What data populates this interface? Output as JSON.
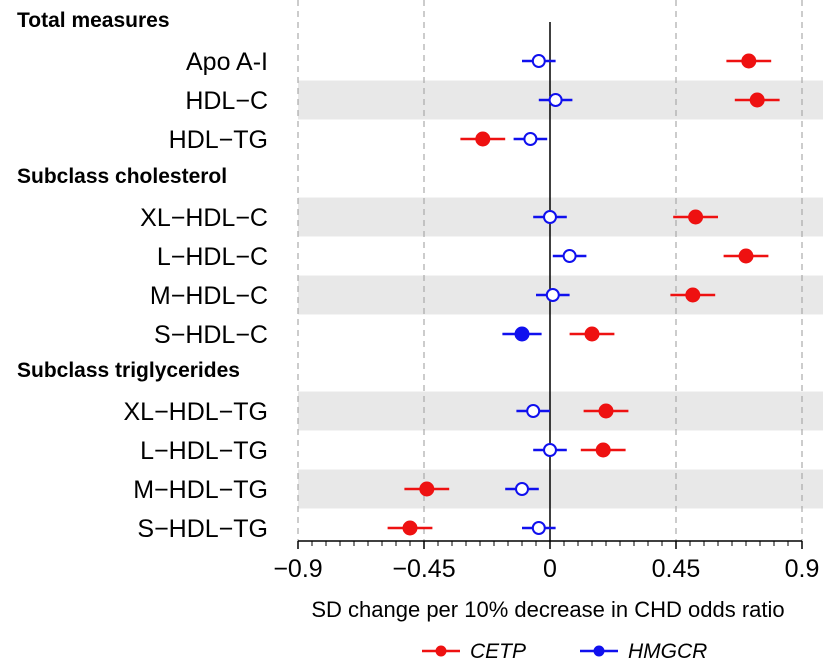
{
  "chart_data": {
    "type": "scatter",
    "subtype": "forest-plot",
    "xlabel": "SD change per 10% decrease in CHD odds ratio",
    "xlim": [
      -0.9,
      0.9
    ],
    "xticks": [
      -0.9,
      -0.45,
      0,
      0.45,
      0.9
    ],
    "xtick_labels": [
      "−0.9",
      "−0.45",
      "0",
      "0.45",
      "0.9"
    ],
    "grid": "dashed vertical at major ticks",
    "reference_line": 0,
    "legend_position": "bottom",
    "groups": [
      {
        "label": "Total measures",
        "rows": [
          "Apo A-I",
          "HDL−C",
          "HDL−TG"
        ]
      },
      {
        "label": "Subclass cholesterol",
        "rows": [
          "XL−HDL−C",
          "L−HDL−C",
          "M−HDL−C",
          "S−HDL−C"
        ]
      },
      {
        "label": "Subclass triglycerides",
        "rows": [
          "XL−HDL−TG",
          "L−HDL−TG",
          "M−HDL−TG",
          "S−HDL−TG"
        ]
      }
    ],
    "shaded_rows": [
      "HDL−C",
      "XL−HDL−C",
      "M−HDL−C",
      "XL−HDL−TG",
      "M−HDL−TG"
    ],
    "series": [
      {
        "name": "CETP",
        "color": "#ee1111",
        "points": [
          {
            "row": "Apo A-I",
            "est": 0.71,
            "lo": 0.63,
            "hi": 0.79,
            "filled": true
          },
          {
            "row": "HDL−C",
            "est": 0.74,
            "lo": 0.66,
            "hi": 0.82,
            "filled": true
          },
          {
            "row": "HDL−TG",
            "est": -0.24,
            "lo": -0.32,
            "hi": -0.16,
            "filled": true
          },
          {
            "row": "XL−HDL−C",
            "est": 0.52,
            "lo": 0.44,
            "hi": 0.6,
            "filled": true
          },
          {
            "row": "L−HDL−C",
            "est": 0.7,
            "lo": 0.62,
            "hi": 0.78,
            "filled": true
          },
          {
            "row": "M−HDL−C",
            "est": 0.51,
            "lo": 0.43,
            "hi": 0.59,
            "filled": true
          },
          {
            "row": "S−HDL−C",
            "est": 0.15,
            "lo": 0.07,
            "hi": 0.23,
            "filled": true
          },
          {
            "row": "XL−HDL−TG",
            "est": 0.2,
            "lo": 0.12,
            "hi": 0.28,
            "filled": true
          },
          {
            "row": "L−HDL−TG",
            "est": 0.19,
            "lo": 0.11,
            "hi": 0.27,
            "filled": true
          },
          {
            "row": "M−HDL−TG",
            "est": -0.44,
            "lo": -0.52,
            "hi": -0.36,
            "filled": true
          },
          {
            "row": "S−HDL−TG",
            "est": -0.5,
            "lo": -0.58,
            "hi": -0.42,
            "filled": true
          }
        ]
      },
      {
        "name": "HMGCR",
        "color": "#1010ee",
        "points": [
          {
            "row": "Apo A-I",
            "est": -0.04,
            "lo": -0.1,
            "hi": 0.02,
            "filled": false
          },
          {
            "row": "HDL−C",
            "est": 0.02,
            "lo": -0.04,
            "hi": 0.08,
            "filled": false
          },
          {
            "row": "HDL−TG",
            "est": -0.07,
            "lo": -0.13,
            "hi": -0.01,
            "filled": false
          },
          {
            "row": "XL−HDL−C",
            "est": 0.0,
            "lo": -0.06,
            "hi": 0.06,
            "filled": false
          },
          {
            "row": "L−HDL−C",
            "est": 0.07,
            "lo": 0.01,
            "hi": 0.13,
            "filled": false
          },
          {
            "row": "M−HDL−C",
            "est": 0.01,
            "lo": -0.05,
            "hi": 0.07,
            "filled": false
          },
          {
            "row": "S−HDL−C",
            "est": -0.1,
            "lo": -0.17,
            "hi": -0.03,
            "filled": true
          },
          {
            "row": "XL−HDL−TG",
            "est": -0.06,
            "lo": -0.12,
            "hi": 0.0,
            "filled": false
          },
          {
            "row": "L−HDL−TG",
            "est": 0.0,
            "lo": -0.06,
            "hi": 0.06,
            "filled": false
          },
          {
            "row": "M−HDL−TG",
            "est": -0.1,
            "lo": -0.16,
            "hi": -0.04,
            "filled": false
          },
          {
            "row": "S−HDL−TG",
            "est": -0.04,
            "lo": -0.1,
            "hi": 0.02,
            "filled": false
          }
        ]
      }
    ]
  }
}
